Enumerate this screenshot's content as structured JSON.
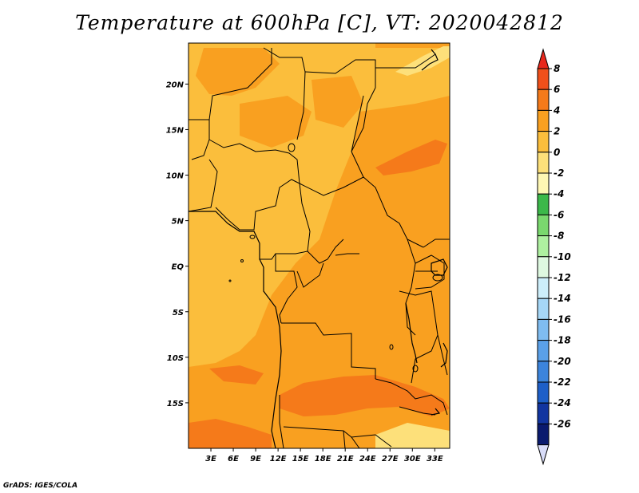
{
  "title": "Temperature at 600hPa [C], VT: 2020042812",
  "credit": "GrADS: IGES/COLA",
  "map": {
    "lon_range": [
      0,
      35
    ],
    "lat_range": [
      -20,
      24.5
    ],
    "x_ticks": [
      "3E",
      "6E",
      "9E",
      "12E",
      "15E",
      "18E",
      "21E",
      "24E",
      "27E",
      "30E",
      "33E"
    ],
    "x_tick_values": [
      3,
      6,
      9,
      12,
      15,
      18,
      21,
      24,
      27,
      30,
      33
    ],
    "y_ticks": [
      "20N",
      "15N",
      "10N",
      "5N",
      "EQ",
      "5S",
      "10S",
      "15S"
    ],
    "y_tick_values": [
      20,
      15,
      10,
      5,
      0,
      -5,
      -10,
      -15
    ]
  },
  "colorbar": {
    "levels": [
      "8",
      "6",
      "4",
      "2",
      "0",
      "-2",
      "-4",
      "-6",
      "-8",
      "-10",
      "-12",
      "-14",
      "-16",
      "-18",
      "-20",
      "-22",
      "-24",
      "-26"
    ],
    "colors": [
      "#e8281c",
      "#f0501a",
      "#f57a1a",
      "#f9a020",
      "#fbbe3c",
      "#fde07a",
      "#fef7b4",
      "#3cb84a",
      "#7ad86e",
      "#aef0a0",
      "#def8e0",
      "#cdeefa",
      "#a6d7f7",
      "#7fbcf0",
      "#5aa0e8",
      "#3c84dc",
      "#1e5fc8",
      "#1235a0",
      "#0a1a6e",
      "#d8dcf8"
    ]
  }
}
